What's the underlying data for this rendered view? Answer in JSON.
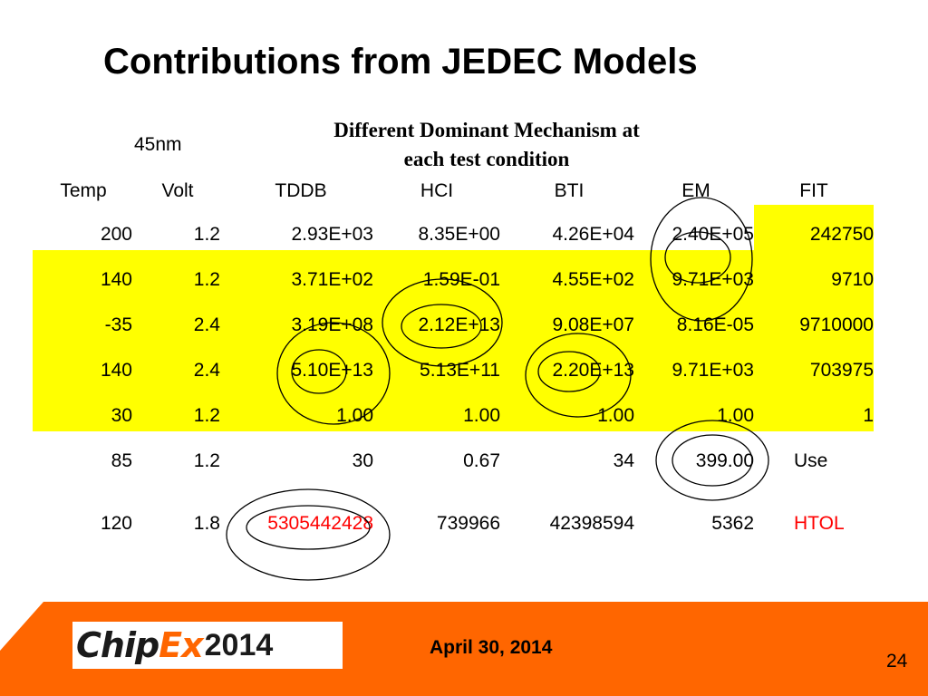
{
  "title": "Contributions from JEDEC Models",
  "node_label": "45nm",
  "mechanism_note_line1": "Different Dominant Mechanism at",
  "mechanism_note_line2": "each test condition",
  "headers": [
    "Temp",
    "Volt",
    "TDDB",
    "HCI",
    "BTI",
    "EM",
    "FIT"
  ],
  "rows": [
    [
      "200",
      "1.2",
      "2.93E+03",
      "8.35E+00",
      "4.26E+04",
      "2.40E+05",
      "242750"
    ],
    [
      "140",
      "1.2",
      "3.71E+02",
      "1.59E-01",
      "4.55E+02",
      "9.71E+03",
      "9710"
    ],
    [
      "-35",
      "2.4",
      "3.19E+08",
      "2.12E+13",
      "9.08E+07",
      "8.16E-05",
      "9710000"
    ],
    [
      "140",
      "2.4",
      "5.10E+13",
      "5.13E+11",
      "2.20E+13",
      "9.71E+03",
      "703975"
    ],
    [
      "30",
      "1.2",
      "1.00",
      "1.00",
      "1.00",
      "1.00",
      "1"
    ],
    [
      "85",
      "1.2",
      "30",
      "0.67",
      "34",
      "399.00",
      "Use"
    ],
    [
      "120",
      "1.8",
      "5305442428",
      "739966",
      "42398594",
      "5362",
      "HTOL"
    ]
  ],
  "highlight_color": "#ffff00",
  "emphasis_color": "#ff0000",
  "footer": {
    "logo_chip": "Chip",
    "logo_ex": "Ex",
    "logo_year": "2014",
    "date": "April 30, 2014",
    "page_number": "24",
    "color": "#ff6600"
  }
}
